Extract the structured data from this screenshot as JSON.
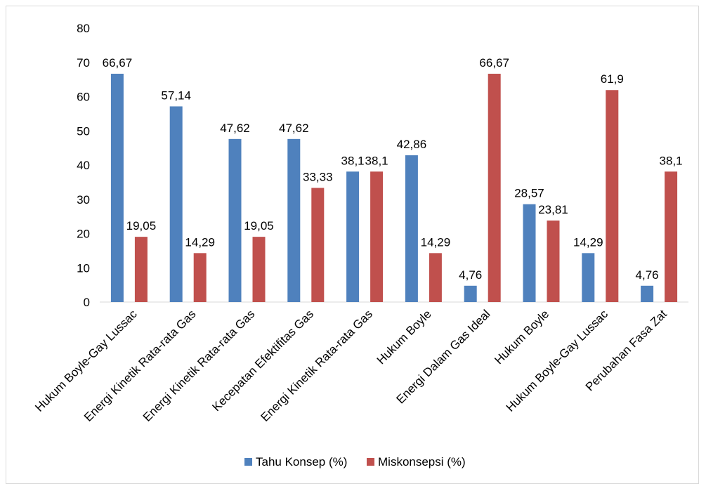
{
  "chart_data": {
    "type": "bar",
    "categories": [
      "Hukum Boyle-Gay Lussac",
      "Energi Kinetik Rata-rata Gas",
      "Energi Kinetik Rata-rata Gas",
      "Kecepatan Efektifitas Gas",
      "Energi Kinetik Rata-rata Gas",
      "Hukum Boyle",
      "Energi Dalam Gas Ideal",
      "Hukum Boyle",
      "Hukum Boyle-Gay Lussac",
      "Perubahan Fasa Zat"
    ],
    "series": [
      {
        "name": "Tahu Konsep (%)",
        "color": "#4f81bd",
        "values": [
          66.67,
          57.14,
          47.62,
          47.62,
          38.1,
          42.86,
          4.76,
          28.57,
          14.29,
          4.76
        ],
        "labels": [
          "66,67",
          "57,14",
          "47,62",
          "47,62",
          "38,1",
          "42,86",
          "4,76",
          "28,57",
          "14,29",
          "4,76"
        ]
      },
      {
        "name": "Miskonsepsi (%)",
        "color": "#c0504d",
        "values": [
          19.05,
          14.29,
          19.05,
          33.33,
          38.1,
          14.29,
          66.67,
          23.81,
          61.9,
          38.1
        ],
        "labels": [
          "19,05",
          "14,29",
          "19,05",
          "33,33",
          "38,1",
          "14,29",
          "66,67",
          "23,81",
          "61,9",
          "38,1"
        ]
      }
    ],
    "ylim": [
      0,
      80
    ],
    "yticks": [
      0,
      10,
      20,
      30,
      40,
      50,
      60,
      70,
      80
    ],
    "grid": false,
    "legend_position": "bottom",
    "title": "",
    "xlabel": "",
    "ylabel": ""
  }
}
